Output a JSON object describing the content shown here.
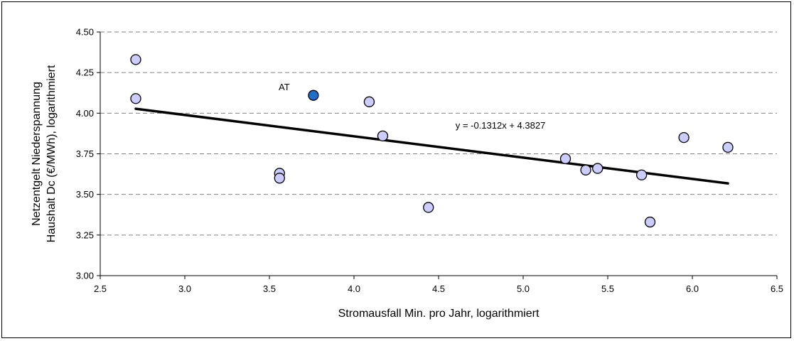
{
  "chart_data": {
    "type": "scatter",
    "title": "",
    "xlabel": "Stromausfall Min. pro Jahr, logarithmiert",
    "ylabel_lines": [
      "Netzentgelt Niederspannung",
      "Haushalt Dc (€/MWh), logarithmiert"
    ],
    "xlim": [
      2.5,
      6.5
    ],
    "ylim": [
      3.0,
      4.5
    ],
    "x_ticks": [
      "2.5",
      "3.0",
      "3.5",
      "4.0",
      "4.5",
      "5.0",
      "5.5",
      "6.0",
      "6.5"
    ],
    "y_ticks": [
      "3.00",
      "3.25",
      "3.50",
      "3.75",
      "4.00",
      "4.25",
      "4.50"
    ],
    "grid": "horizontal-dashed",
    "legend": "none",
    "colors": {
      "point_fill": "#ccccff",
      "highlight_fill": "#1f6fcc",
      "point_stroke": "#000000",
      "trendline": "#000000",
      "grid": "#808080"
    },
    "series": [
      {
        "points": [
          {
            "x": 2.71,
            "y": 4.33
          },
          {
            "x": 2.71,
            "y": 4.09
          },
          {
            "x": 3.56,
            "y": 3.63
          },
          {
            "x": 3.56,
            "y": 3.6
          },
          {
            "x": 4.09,
            "y": 4.07
          },
          {
            "x": 4.17,
            "y": 3.86
          },
          {
            "x": 4.44,
            "y": 3.42
          },
          {
            "x": 5.25,
            "y": 3.72
          },
          {
            "x": 5.37,
            "y": 3.65
          },
          {
            "x": 5.44,
            "y": 3.66
          },
          {
            "x": 5.7,
            "y": 3.62
          },
          {
            "x": 5.75,
            "y": 3.33
          },
          {
            "x": 5.95,
            "y": 3.85
          },
          {
            "x": 6.21,
            "y": 3.79
          }
        ]
      },
      {
        "highlight": true,
        "points": [
          {
            "x": 3.76,
            "y": 4.11,
            "label": "AT"
          }
        ]
      }
    ],
    "trendline": {
      "slope": -0.1312,
      "intercept": 4.3827,
      "x_range": [
        2.71,
        6.21
      ],
      "equation_label": "y = -0.1312x + 4.3827",
      "label_anchor": {
        "x": 4.6,
        "y": 3.905
      }
    }
  }
}
